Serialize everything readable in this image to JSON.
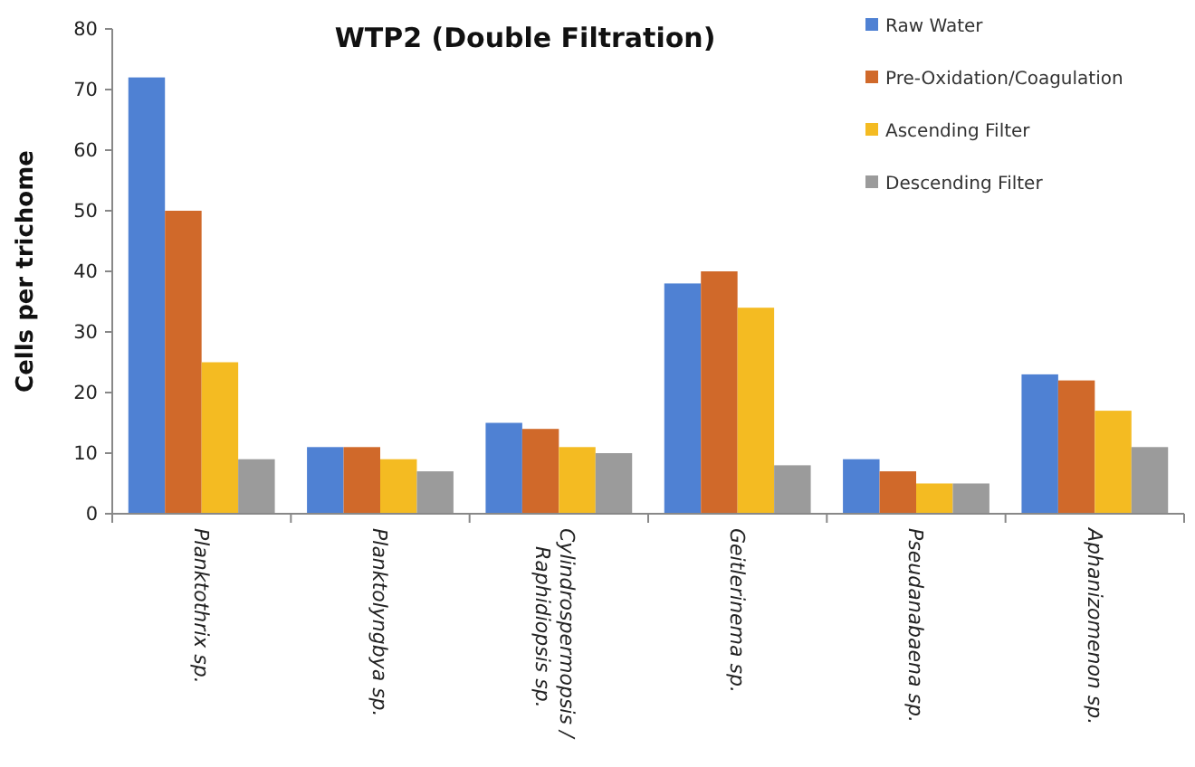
{
  "chart_data": {
    "type": "bar",
    "title": "WTP2 (Double Filtration)",
    "ylabel": "Cells per trichome",
    "categories": [
      "Planktothrix sp.",
      "Planktolyngbya sp.",
      "Cylindrospermopsis /\nRaphidiopsis sp.",
      "Geitlerinema sp.",
      "Pseudanabaena sp.",
      "Aphanizomenon sp."
    ],
    "series": [
      {
        "name": "Raw Water",
        "color": "#4f81d3",
        "values": [
          72,
          11,
          15,
          38,
          9,
          23
        ]
      },
      {
        "name": "Pre-Oxidation/Coagulation",
        "color": "#d0692a",
        "values": [
          50,
          11,
          14,
          40,
          7,
          22
        ]
      },
      {
        "name": "Ascending Filter",
        "color": "#f4bb22",
        "values": [
          25,
          9,
          11,
          34,
          5,
          17
        ]
      },
      {
        "name": "Descending Filter",
        "color": "#9b9b9b",
        "values": [
          9,
          7,
          10,
          8,
          5,
          11
        ]
      }
    ],
    "ylim": [
      0,
      80
    ],
    "yticks": [
      0,
      10,
      20,
      30,
      40,
      50,
      60,
      70,
      80
    ],
    "grid": false,
    "legend": "top right"
  }
}
